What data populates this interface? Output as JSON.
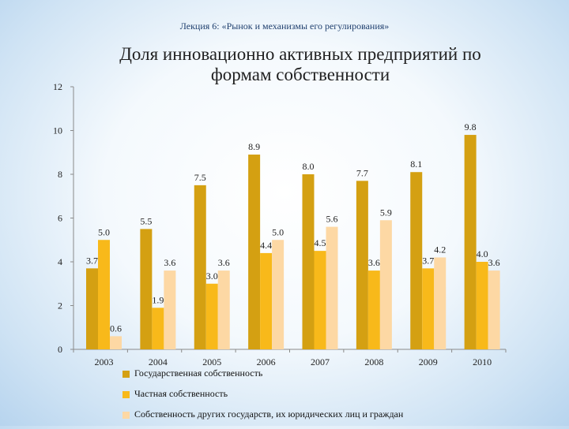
{
  "lecture": "Лекция 6: «Рынок и механизмы его регулирования»",
  "chart_data": {
    "type": "bar",
    "title": "Доля инновационно активных предприятий по формам собственности",
    "categories": [
      "2003",
      "2004",
      "2005",
      "2006",
      "2007",
      "2008",
      "2009",
      "2010"
    ],
    "ylim": [
      0,
      12
    ],
    "yticks": [
      0,
      2,
      4,
      6,
      8,
      10,
      12
    ],
    "grid": false,
    "legend_position": "bottom",
    "series": [
      {
        "name": "Государственная собственность",
        "color": "#d4a012",
        "values": [
          3.7,
          5.5,
          7.5,
          8.9,
          8.0,
          7.7,
          8.1,
          9.8
        ]
      },
      {
        "name": "Частная собственность",
        "color": "#f8b91a",
        "values": [
          5.0,
          1.9,
          3.0,
          4.4,
          4.5,
          3.6,
          3.7,
          4.0
        ]
      },
      {
        "name": "Собственность других государств, их юридических лиц и граждан",
        "color": "#fdd8a4",
        "values": [
          0.6,
          3.6,
          3.6,
          5.0,
          5.6,
          5.9,
          4.2,
          3.6
        ]
      }
    ],
    "value_labels": [
      [
        "3.7",
        "5.5",
        "7.5",
        "8.9",
        "8.0",
        "7.7",
        "8.1",
        "9.8"
      ],
      [
        "5.0",
        "1.9",
        "3.0",
        "4.4",
        "4.5",
        "3.6",
        "3.7",
        "4.0"
      ],
      [
        "0.6",
        "3.6",
        "3.6",
        "5.0",
        "5.6",
        "5.9",
        "4.2",
        "3.6"
      ]
    ]
  }
}
